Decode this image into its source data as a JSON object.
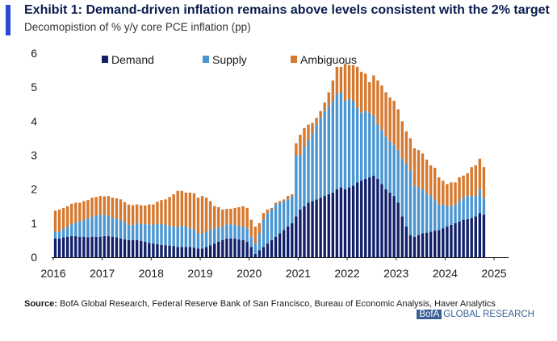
{
  "title": "Exhibit 1: Demand-driven inflation remains above levels consistent with the 2% target",
  "subtitle": "Decomopistion of % y/y core PCE inflation (pp)",
  "source_label": "Source:",
  "source_text": "BofA Global Research, Federal Reserve Bank of San Francisco, Bureau of Economic Analysis, Haver Analytics",
  "brand": {
    "box": "BofA",
    "rest": "GLOBAL RESEARCH"
  },
  "colors": {
    "accent": "#2b49d6",
    "demand": "#12206a",
    "supply": "#4a96d3",
    "ambiguous": "#d6782e"
  },
  "chart_data": {
    "type": "bar",
    "stacked": true,
    "title": "Exhibit 1: Demand-driven inflation remains above levels consistent with the 2% target",
    "subtitle": "Decomopistion of % y/y core PCE inflation (pp)",
    "xlabel": "",
    "ylabel": "",
    "ylim": [
      0,
      6
    ],
    "yticks": [
      0,
      1,
      2,
      3,
      4,
      5,
      6
    ],
    "xticks": [
      "2016",
      "2017",
      "2018",
      "2019",
      "2020",
      "2021",
      "2022",
      "2023",
      "2024",
      "2025"
    ],
    "start": "2016-01",
    "frequency": "monthly",
    "legend_position": "top",
    "series": [
      {
        "name": "Demand",
        "values": [
          0.55,
          0.55,
          0.58,
          0.6,
          0.62,
          0.62,
          0.6,
          0.6,
          0.58,
          0.6,
          0.6,
          0.6,
          0.62,
          0.62,
          0.6,
          0.58,
          0.55,
          0.52,
          0.5,
          0.5,
          0.5,
          0.48,
          0.45,
          0.42,
          0.4,
          0.38,
          0.36,
          0.35,
          0.34,
          0.32,
          0.3,
          0.3,
          0.3,
          0.3,
          0.28,
          0.25,
          0.25,
          0.3,
          0.35,
          0.4,
          0.45,
          0.5,
          0.55,
          0.55,
          0.55,
          0.52,
          0.5,
          0.45,
          0.3,
          0.1,
          0.2,
          0.3,
          0.4,
          0.5,
          0.6,
          0.7,
          0.8,
          0.9,
          1.0,
          1.2,
          1.4,
          1.5,
          1.6,
          1.65,
          1.7,
          1.75,
          1.8,
          1.85,
          1.9,
          2.0,
          2.05,
          2.0,
          2.05,
          2.1,
          2.2,
          2.25,
          2.3,
          2.35,
          2.4,
          2.3,
          2.15,
          2.0,
          1.9,
          1.8,
          1.6,
          1.2,
          0.9,
          0.65,
          0.6,
          0.65,
          0.7,
          0.72,
          0.75,
          0.78,
          0.8,
          0.85,
          0.9,
          0.95,
          1.0,
          1.05,
          1.1,
          1.12,
          1.15,
          1.2,
          1.3,
          1.25
        ]
      },
      {
        "name": "Supply",
        "values": [
          0.2,
          0.2,
          0.25,
          0.3,
          0.35,
          0.4,
          0.45,
          0.5,
          0.55,
          0.6,
          0.62,
          0.65,
          0.62,
          0.6,
          0.55,
          0.55,
          0.55,
          0.5,
          0.45,
          0.45,
          0.5,
          0.5,
          0.52,
          0.55,
          0.55,
          0.6,
          0.62,
          0.6,
          0.58,
          0.58,
          0.6,
          0.62,
          0.6,
          0.55,
          0.55,
          0.45,
          0.45,
          0.45,
          0.45,
          0.45,
          0.42,
          0.4,
          0.42,
          0.42,
          0.4,
          0.4,
          0.4,
          0.4,
          0.3,
          0.3,
          0.5,
          0.8,
          0.9,
          0.9,
          0.95,
          0.9,
          0.85,
          0.8,
          0.8,
          1.8,
          1.6,
          1.75,
          1.85,
          2.0,
          2.2,
          2.35,
          2.5,
          2.6,
          2.7,
          2.8,
          2.8,
          2.6,
          2.6,
          2.5,
          2.2,
          2.0,
          2.0,
          1.9,
          1.75,
          1.6,
          1.6,
          1.55,
          1.5,
          1.5,
          1.55,
          1.7,
          1.85,
          1.9,
          1.5,
          1.4,
          1.3,
          1.15,
          1.05,
          0.9,
          0.75,
          0.7,
          0.6,
          0.55,
          0.55,
          0.6,
          0.65,
          0.7,
          0.65,
          0.6,
          0.7,
          0.5
        ]
      },
      {
        "name": "Ambiguous",
        "values": [
          0.62,
          0.65,
          0.62,
          0.6,
          0.6,
          0.58,
          0.55,
          0.55,
          0.55,
          0.55,
          0.55,
          0.55,
          0.55,
          0.58,
          0.6,
          0.6,
          0.6,
          0.6,
          0.6,
          0.58,
          0.55,
          0.55,
          0.55,
          0.58,
          0.6,
          0.65,
          0.7,
          0.75,
          0.85,
          0.95,
          1.05,
          1.03,
          1.0,
          1.05,
          1.05,
          1.05,
          1.1,
          1.0,
          0.85,
          0.65,
          0.6,
          0.5,
          0.45,
          0.45,
          0.5,
          0.55,
          0.6,
          0.6,
          0.5,
          0.5,
          0.3,
          0.2,
          0.1,
          0.05,
          0.05,
          0.05,
          0.05,
          0.1,
          0.05,
          0.35,
          0.6,
          0.55,
          0.45,
          0.3,
          0.2,
          0.2,
          0.25,
          0.4,
          0.6,
          0.8,
          0.75,
          1.1,
          1.0,
          1.05,
          1.2,
          1.2,
          1.1,
          0.9,
          1.2,
          1.3,
          1.3,
          1.3,
          1.3,
          1.3,
          1.2,
          1.1,
          0.95,
          0.95,
          1.1,
          1.1,
          1.05,
          1.0,
          0.9,
          0.95,
          0.8,
          0.7,
          0.65,
          0.7,
          0.65,
          0.7,
          0.65,
          0.65,
          0.85,
          0.9,
          0.9,
          0.9
        ]
      }
    ]
  }
}
